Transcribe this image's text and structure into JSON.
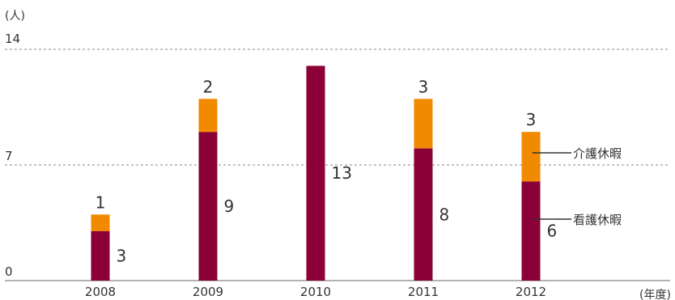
{
  "chart_data": {
    "type": "bar",
    "stacked": true,
    "unit_label": "(人)",
    "x_unit_label": "(年度)",
    "categories": [
      "2008",
      "2009",
      "2010",
      "2011",
      "2012"
    ],
    "series": [
      {
        "name": "看護休暇",
        "values": [
          3,
          9,
          13,
          8,
          6
        ],
        "color": "#8b0036"
      },
      {
        "name": "介護休暇",
        "values": [
          1,
          2,
          0,
          3,
          3
        ],
        "color": "#f28a00"
      }
    ],
    "y_ticks": [
      "0",
      "7",
      "14"
    ],
    "ylim": [
      0,
      14
    ],
    "grid": "dashed lines at 7 and 14",
    "legend": "callout labels beside 2012 bar"
  }
}
